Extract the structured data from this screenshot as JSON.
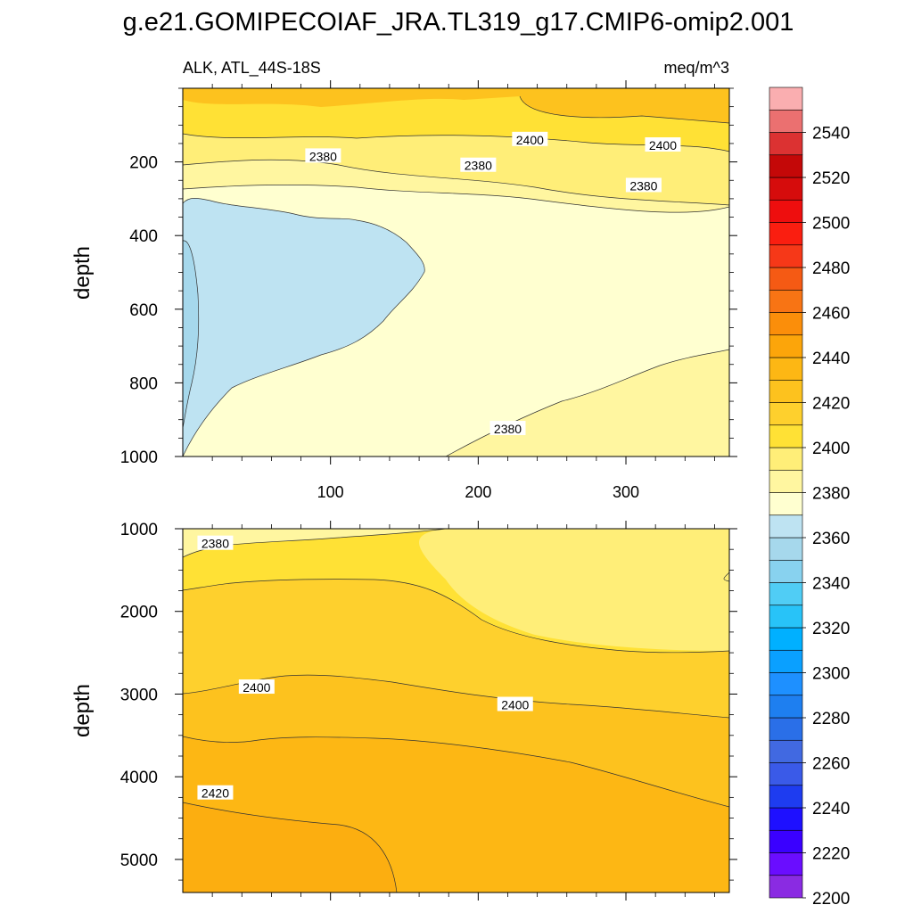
{
  "chart_data": {
    "type": "contour",
    "title": "g.e21.GOMIPECOIAF_JRA.TL319_g17.CMIP6-omip2.001",
    "subtitle_left": "ALK, ATL_44S-18S",
    "subtitle_right": "meq/m^3",
    "xlabel": "",
    "ylabel": "depth",
    "xlim": [
      0,
      370
    ],
    "xticks": [
      100,
      200,
      300
    ],
    "panels": [
      {
        "name": "upper",
        "ylim": [
          0,
          1000
        ],
        "yticks": [
          200,
          400,
          600,
          800,
          1000
        ],
        "show_xtick_labels": true,
        "contour_labels": [
          {
            "text": "2400",
            "x": 235,
            "y": 140
          },
          {
            "text": "2400",
            "x": 325,
            "y": 155
          },
          {
            "text": "2380",
            "x": 95,
            "y": 185
          },
          {
            "text": "2380",
            "x": 200,
            "y": 210
          },
          {
            "text": "2380",
            "x": 312,
            "y": 265
          },
          {
            "text": "2380",
            "x": 220,
            "y": 925
          }
        ]
      },
      {
        "name": "lower",
        "ylim": [
          1000,
          5400
        ],
        "yticks": [
          1000,
          2000,
          3000,
          4000,
          5000
        ],
        "show_xtick_labels": false,
        "contour_labels": [
          {
            "text": "2380",
            "x": 22,
            "y": 1180
          },
          {
            "text": "2400",
            "x": 50,
            "y": 2920
          },
          {
            "text": "2400",
            "x": 225,
            "y": 3130
          },
          {
            "text": "2420",
            "x": 22,
            "y": 4200
          }
        ]
      }
    ],
    "colorbar": {
      "levels": [
        2200,
        2210,
        2220,
        2230,
        2240,
        2250,
        2260,
        2270,
        2280,
        2290,
        2300,
        2310,
        2320,
        2330,
        2340,
        2350,
        2360,
        2370,
        2380,
        2390,
        2400,
        2410,
        2420,
        2430,
        2440,
        2450,
        2460,
        2470,
        2480,
        2490,
        2500,
        2510,
        2520,
        2530,
        2540,
        2550
      ],
      "labels": [
        "2200",
        "2220",
        "2240",
        "2260",
        "2280",
        "2300",
        "2320",
        "2340",
        "2360",
        "2380",
        "2400",
        "2420",
        "2440",
        "2460",
        "2480",
        "2500",
        "2520",
        "2540"
      ],
      "colors": [
        "#8a2be2",
        "#6a0dff",
        "#3a00ff",
        "#1e10ff",
        "#1e3cf0",
        "#3a5ae8",
        "#4169e1",
        "#2a6fe8",
        "#1e7ff0",
        "#1e90ff",
        "#0aa0ff",
        "#00b0ff",
        "#28c3f8",
        "#50cdf5",
        "#88d2ef",
        "#a6d8ec",
        "#bee3f2",
        "#ffffd0",
        "#fff6a0",
        "#ffee78",
        "#ffe135",
        "#fed02d",
        "#fdc21e",
        "#fdb714",
        "#fca50a",
        "#fb8e0a",
        "#f87414",
        "#f55a14",
        "#f63818",
        "#fa1e10",
        "#ee0e0e",
        "#d60c0c",
        "#c40808",
        "#dc3232",
        "#eb7070",
        "#faaeb0"
      ]
    }
  }
}
